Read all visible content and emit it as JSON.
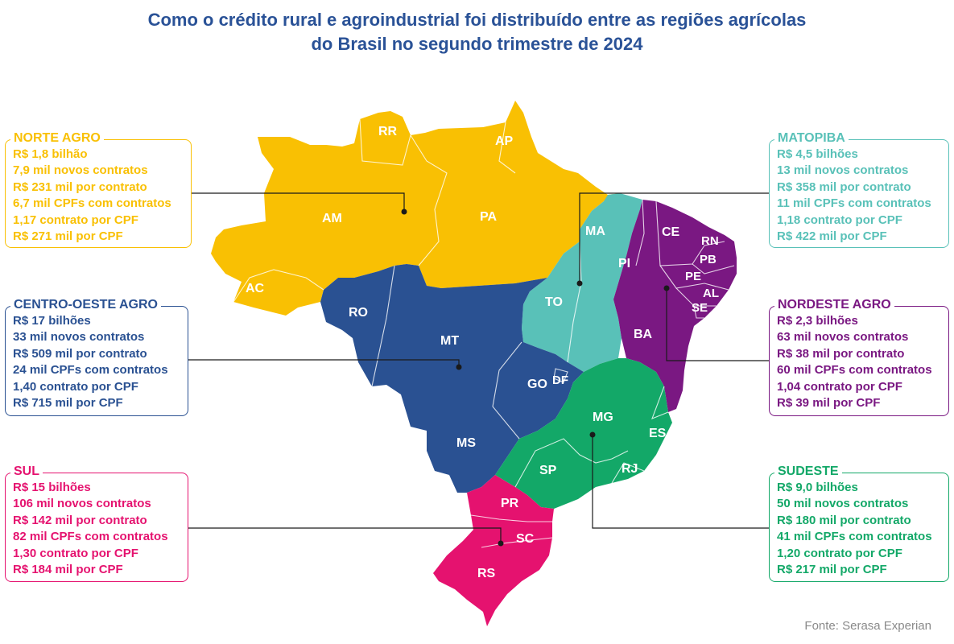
{
  "title": {
    "line1": "Como o crédito rural e agroindustrial foi distribuído entre as regiões agrícolas",
    "line2": "do Brasil no segundo trimestre de 2024"
  },
  "colors": {
    "norte": "#f9c003",
    "matopiba": "#59c1b8",
    "nordeste": "#7a1882",
    "centro_oeste": "#2a5192",
    "sul": "#e5126f",
    "sudeste": "#13a868",
    "title": "#2a5297"
  },
  "regions": {
    "norte": {
      "name": "NORTE AGRO",
      "lines": [
        "R$ 1,8 bilhão",
        "7,9 mil novos contratos",
        "R$ 231 mil por contrato",
        "6,7 mil CPFs com contratos",
        "1,17 contrato por CPF",
        "R$ 271 mil por CPF"
      ]
    },
    "centro_oeste": {
      "name": "CENTRO-OESTE AGRO",
      "lines": [
        "R$ 17 bilhões",
        "33 mil novos contratos",
        "R$ 509 mil por contrato",
        "24 mil CPFs com contratos",
        "1,40 contrato por CPF",
        "R$ 715 mil por CPF"
      ]
    },
    "sul": {
      "name": "SUL",
      "lines": [
        "R$ 15 bilhões",
        "106 mil novos contratos",
        "R$ 142 mil por contrato",
        "82 mil CPFs com contratos",
        "1,30 contrato por CPF",
        "R$ 184 mil por CPF"
      ]
    },
    "matopiba": {
      "name": "MATOPIBA",
      "lines": [
        "R$ 4,5 bilhões",
        "13 mil novos contratos",
        "R$ 358 mil por contrato",
        "11 mil CPFs com contratos",
        "1,18 contrato por CPF",
        "R$ 422 mil por CPF"
      ]
    },
    "nordeste": {
      "name": "NORDESTE AGRO",
      "lines": [
        "R$ 2,3 bilhões",
        "63 mil novos contratos",
        "R$ 38 mil por contrato",
        "60 mil CPFs com contratos",
        "1,04 contrato por CPF",
        "R$ 39 mil por CPF"
      ]
    },
    "sudeste": {
      "name": "SUDESTE",
      "lines": [
        "R$ 9,0 bilhões",
        "50 mil novos contratos",
        "R$ 180 mil por contrato",
        "41 mil CPFs com contratos",
        "1,20 contrato por CPF",
        "R$ 217 mil por CPF"
      ]
    }
  },
  "states": {
    "RR": "RR",
    "AP": "AP",
    "AM": "AM",
    "PA": "PA",
    "AC": "AC",
    "RO": "RO",
    "MT": "MT",
    "MA": "MA",
    "TO": "TO",
    "PI": "PI",
    "CE": "CE",
    "RN": "RN",
    "PB": "PB",
    "PE": "PE",
    "AL": "AL",
    "SE": "SE",
    "BA": "BA",
    "GO": "GO",
    "DF": "DF",
    "MG": "MG",
    "ES": "ES",
    "MS": "MS",
    "SP": "SP",
    "RJ": "RJ",
    "PR": "PR",
    "SC": "SC",
    "RS": "RS"
  },
  "source": "Fonte: Serasa Experian"
}
